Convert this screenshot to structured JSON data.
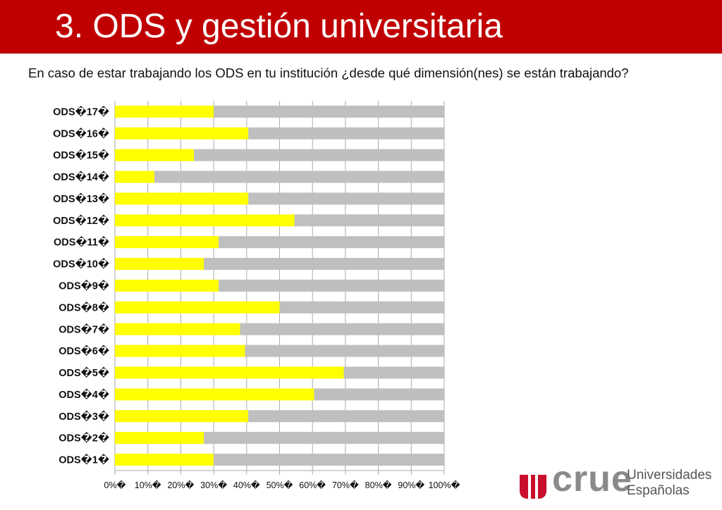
{
  "slide": {
    "title": "3. ODS y gestión universitaria",
    "question": "En caso de estar trabajando los ODS en tu institución ¿desde qué dimensión(nes) se están trabajando?"
  },
  "logo": {
    "name": "crue",
    "subtitle_line1": "Universidades",
    "subtitle_line2": "Españolas",
    "colors": {
      "emblem": "#c8102e",
      "text": "#8a8a8a"
    }
  },
  "chart_data": {
    "type": "bar",
    "orientation": "horizontal",
    "stacked": true,
    "categories": [
      "ODS 1",
      "ODS 2",
      "ODS 3",
      "ODS 4",
      "ODS 5",
      "ODS 6",
      "ODS 7",
      "ODS 8",
      "ODS 9",
      "ODS 10",
      "ODS 11",
      "ODS 12",
      "ODS 13",
      "ODS 14",
      "ODS 15",
      "ODS 16",
      "ODS 17"
    ],
    "category_labels": [
      "ODS�1�",
      "ODS�2�",
      "ODS�3�",
      "ODS�4�",
      "ODS�5�",
      "ODS�6�",
      "ODS�7�",
      "ODS�8�",
      "ODS�9�",
      "ODS�10�",
      "ODS�11�",
      "ODS�12�",
      "ODS�13�",
      "ODS�14�",
      "ODS�15�",
      "ODS�16�",
      "ODS�17�"
    ],
    "series": [
      {
        "color": "#ffff00",
        "values": [
          30,
          27,
          40.5,
          60.5,
          69.5,
          39.5,
          38,
          50,
          31.5,
          27,
          31.5,
          54.5,
          40.5,
          12,
          24,
          40.5,
          30
        ]
      },
      {
        "color": "#bfbfbf",
        "values": [
          70,
          73,
          59.5,
          39.5,
          30.5,
          60.5,
          62,
          50,
          68.5,
          73,
          68.5,
          45.5,
          59.5,
          88,
          76,
          59.5,
          70
        ]
      }
    ],
    "xlim": [
      0,
      100
    ],
    "x_ticks": [
      0,
      10,
      20,
      30,
      40,
      50,
      60,
      70,
      80,
      90,
      100
    ],
    "x_tick_labels": [
      "0%�",
      "10%�",
      "20%�",
      "30%�",
      "40%�",
      "50%�",
      "60%�",
      "70%�",
      "80%�",
      "90%�",
      "100%�"
    ],
    "grid": true,
    "legend": "none",
    "grid_color": "#aaaaaa"
  }
}
